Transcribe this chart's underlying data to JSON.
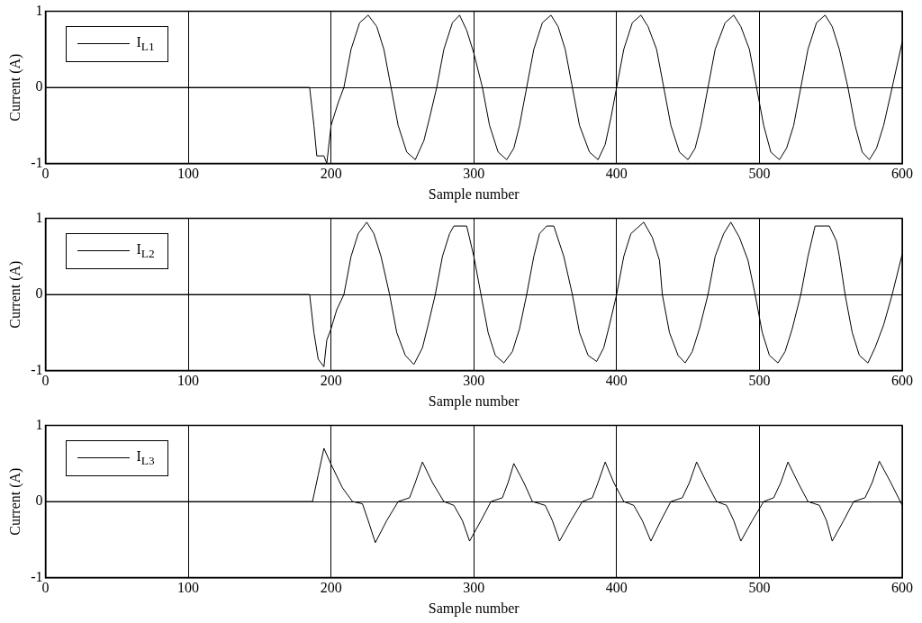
{
  "chart_data": [
    {
      "type": "line",
      "xlabel": "Sample number",
      "ylabel": "Current (A)",
      "xlim": [
        0,
        600
      ],
      "xticks": [
        0,
        100,
        200,
        300,
        400,
        500,
        600
      ],
      "ylim": [
        -1,
        1
      ],
      "yticks": [
        -1,
        0,
        1
      ],
      "grid": true,
      "legend": "top left",
      "marker": "none",
      "line_style": "solid",
      "series": [
        {
          "name": "I$_{L1}$",
          "color": "#000000",
          "x": [
            0,
            185,
            188,
            190,
            195,
            197,
            200,
            205,
            209,
            214,
            220,
            226,
            232,
            237,
            242,
            247,
            253,
            259,
            265,
            269,
            274,
            279,
            285,
            290,
            295,
            300,
            306,
            311,
            317,
            323,
            328,
            332,
            337,
            342,
            348,
            354,
            359,
            364,
            369,
            374,
            381,
            387,
            392,
            396,
            400,
            405,
            411,
            417,
            422,
            428,
            433,
            438,
            444,
            450,
            455,
            459,
            464,
            469,
            476,
            482,
            487,
            493,
            498,
            503,
            508,
            514,
            519,
            524,
            529,
            534,
            540,
            546,
            551,
            556,
            562,
            567,
            572,
            577,
            582,
            587,
            593,
            600
          ],
          "values": [
            0,
            0,
            -0.5,
            -0.9,
            -0.9,
            -1,
            -0.5,
            -0.2,
            0,
            0.5,
            0.85,
            0.95,
            0.8,
            0.5,
            0,
            -0.5,
            -0.85,
            -0.95,
            -0.7,
            -0.4,
            0,
            0.5,
            0.85,
            0.95,
            0.75,
            0.45,
            0,
            -0.5,
            -0.85,
            -0.95,
            -0.8,
            -0.5,
            0,
            0.5,
            0.85,
            0.95,
            0.8,
            0.5,
            0,
            -0.5,
            -0.85,
            -0.95,
            -0.75,
            -0.4,
            0,
            0.5,
            0.85,
            0.95,
            0.8,
            0.5,
            0,
            -0.5,
            -0.85,
            -0.95,
            -0.8,
            -0.5,
            0,
            0.5,
            0.85,
            0.95,
            0.8,
            0.5,
            0,
            -0.5,
            -0.85,
            -0.95,
            -0.8,
            -0.5,
            0,
            0.5,
            0.85,
            0.95,
            0.8,
            0.5,
            0,
            -0.5,
            -0.85,
            -0.95,
            -0.8,
            -0.5,
            0,
            0.6
          ]
        }
      ]
    },
    {
      "type": "line",
      "xlabel": "Sample number",
      "ylabel": "Current (A)",
      "xlim": [
        0,
        600
      ],
      "xticks": [
        0,
        100,
        200,
        300,
        400,
        500,
        600
      ],
      "ylim": [
        -1,
        1
      ],
      "yticks": [
        -1,
        0,
        1
      ],
      "grid": true,
      "legend": "top left",
      "marker": "none",
      "line_style": "solid",
      "series": [
        {
          "name": "I$_{L2}$",
          "color": "#000000",
          "x": [
            0,
            185,
            188,
            191,
            195,
            197,
            200,
            204,
            209,
            214,
            219,
            225,
            230,
            235,
            241,
            246,
            252,
            258,
            264,
            268,
            273,
            278,
            283,
            286,
            295,
            300,
            305,
            310,
            315,
            321,
            327,
            332,
            337,
            342,
            346,
            351,
            356,
            363,
            369,
            374,
            380,
            386,
            391,
            395,
            400,
            405,
            410,
            419,
            425,
            430,
            432,
            437,
            443,
            448,
            453,
            458,
            464,
            469,
            475,
            480,
            486,
            492,
            497,
            502,
            507,
            513,
            518,
            523,
            529,
            534,
            539,
            549,
            554,
            556,
            560,
            565,
            570,
            576,
            581,
            587,
            593,
            600
          ],
          "values": [
            0,
            0,
            -0.5,
            -0.85,
            -0.95,
            -0.6,
            -0.45,
            -0.2,
            0,
            0.5,
            0.8,
            0.95,
            0.8,
            0.5,
            0,
            -0.5,
            -0.8,
            -0.92,
            -0.7,
            -0.4,
            0,
            0.5,
            0.8,
            0.9,
            0.9,
            0.5,
            0,
            -0.5,
            -0.8,
            -0.9,
            -0.75,
            -0.45,
            0,
            0.5,
            0.8,
            0.9,
            0.9,
            0.5,
            0,
            -0.5,
            -0.8,
            -0.88,
            -0.7,
            -0.4,
            0,
            0.5,
            0.8,
            0.95,
            0.75,
            0.45,
            0,
            -0.5,
            -0.8,
            -0.9,
            -0.75,
            -0.45,
            0,
            0.5,
            0.8,
            0.95,
            0.75,
            0.45,
            0,
            -0.5,
            -0.8,
            -0.9,
            -0.75,
            -0.45,
            0,
            0.5,
            0.9,
            0.9,
            0.7,
            0.5,
            0,
            -0.5,
            -0.8,
            -0.9,
            -0.7,
            -0.4,
            0,
            0.53
          ]
        }
      ]
    },
    {
      "type": "line",
      "xlabel": "Sample number",
      "ylabel": "Current (A)",
      "xlim": [
        0,
        600
      ],
      "xticks": [
        0,
        100,
        200,
        300,
        400,
        500,
        600
      ],
      "ylim": [
        -1,
        1
      ],
      "yticks": [
        -1,
        0,
        1
      ],
      "grid": true,
      "legend": "top left",
      "marker": "none",
      "line_style": "solid",
      "series": [
        {
          "name": "I$_{L3}$",
          "color": "#000000",
          "x": [
            0,
            187,
            191,
            195,
            200,
            208,
            215,
            222,
            226,
            231,
            239,
            247,
            255,
            259,
            264,
            271,
            279,
            286,
            292,
            297,
            305,
            312,
            320,
            324,
            328,
            335,
            341,
            350,
            355,
            360,
            368,
            376,
            383,
            387,
            392,
            398,
            405,
            412,
            418,
            424,
            431,
            438,
            446,
            451,
            456,
            463,
            470,
            477,
            482,
            487,
            495,
            503,
            510,
            515,
            520,
            527,
            534,
            542,
            547,
            551,
            559,
            566,
            574,
            579,
            584,
            592,
            600
          ],
          "values": [
            0,
            0,
            0.35,
            0.7,
            0.49,
            0.18,
            0,
            -0.03,
            -0.25,
            -0.54,
            -0.25,
            0,
            0.05,
            0.25,
            0.52,
            0.25,
            0,
            -0.05,
            -0.25,
            -0.52,
            -0.25,
            0,
            0.05,
            0.25,
            0.5,
            0.25,
            0,
            -0.05,
            -0.25,
            -0.52,
            -0.25,
            0,
            0.05,
            0.25,
            0.52,
            0.25,
            0,
            -0.05,
            -0.25,
            -0.52,
            -0.25,
            0,
            0.05,
            0.25,
            0.52,
            0.25,
            0,
            -0.05,
            -0.25,
            -0.52,
            -0.25,
            0,
            0.05,
            0.25,
            0.52,
            0.25,
            0,
            -0.05,
            -0.25,
            -0.52,
            -0.25,
            0,
            0.05,
            0.25,
            0.53,
            0.25,
            -0.05
          ]
        }
      ]
    }
  ]
}
